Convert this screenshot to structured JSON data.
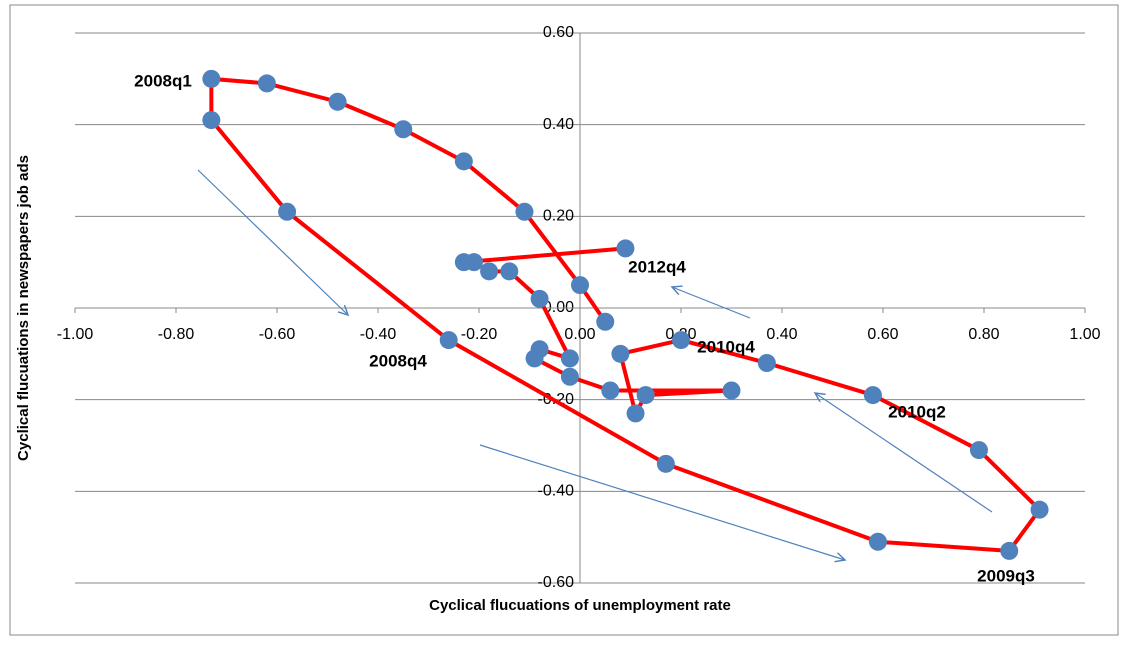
{
  "chart_data": {
    "type": "scatter",
    "x_label": "Cyclical flucuations of unemployment rate",
    "y_label": "Cyclical flucuations in newspapers job ads",
    "xlim": [
      -1,
      1
    ],
    "ylim": [
      -0.6,
      0.6
    ],
    "xticks": [
      {
        "value": -1,
        "label": "-1.00"
      },
      {
        "value": -0.8,
        "label": "-0.80"
      },
      {
        "value": -0.6,
        "label": "-0.60"
      },
      {
        "value": -0.4,
        "label": "-0.40"
      },
      {
        "value": -0.2,
        "label": "-0.20"
      },
      {
        "value": 0,
        "label": "0.00"
      },
      {
        "value": 0.2,
        "label": "0.20"
      },
      {
        "value": 0.4,
        "label": "0.40"
      },
      {
        "value": 0.6,
        "label": "0.60"
      },
      {
        "value": 0.8,
        "label": "0.80"
      },
      {
        "value": 1,
        "label": "1.00"
      }
    ],
    "yticks": [
      {
        "value": -0.6,
        "label": "-0.60"
      },
      {
        "value": -0.4,
        "label": "-0.40"
      },
      {
        "value": -0.2,
        "label": "-0.20"
      },
      {
        "value": 0,
        "label": "0.00"
      },
      {
        "value": 0.2,
        "label": "0.20"
      },
      {
        "value": 0.4,
        "label": "0.40"
      },
      {
        "value": 0.6,
        "label": "0.60"
      }
    ],
    "grid": true,
    "series": [
      {
        "line_color": "#ff0000",
        "color": "#4f81bd",
        "x": [
          0.05,
          0.0,
          -0.11,
          -0.23,
          -0.35,
          -0.48,
          -0.62,
          -0.73,
          -0.73,
          -0.58,
          -0.26,
          0.17,
          0.59,
          0.85,
          0.91,
          0.79,
          0.58,
          0.37,
          0.2,
          0.08,
          0.11,
          0.13,
          0.3,
          0.06,
          -0.02,
          -0.09,
          -0.08,
          -0.02,
          -0.08,
          -0.14,
          -0.18,
          -0.21,
          -0.23,
          0.09
        ],
        "values": [
          -0.03,
          0.05,
          0.21,
          0.32,
          0.39,
          0.45,
          0.49,
          0.5,
          0.41,
          0.21,
          -0.07,
          -0.34,
          -0.51,
          -0.53,
          -0.44,
          -0.31,
          -0.19,
          -0.12,
          -0.07,
          -0.1,
          -0.23,
          -0.19,
          -0.18,
          -0.18,
          -0.15,
          -0.11,
          -0.09,
          -0.11,
          0.02,
          0.08,
          0.08,
          0.1,
          0.1,
          0.13
        ]
      }
    ],
    "annotations": [
      "2008q1",
      "2008q4",
      "2009q3",
      "2010q2",
      "2010q4",
      "2012q4"
    ]
  }
}
